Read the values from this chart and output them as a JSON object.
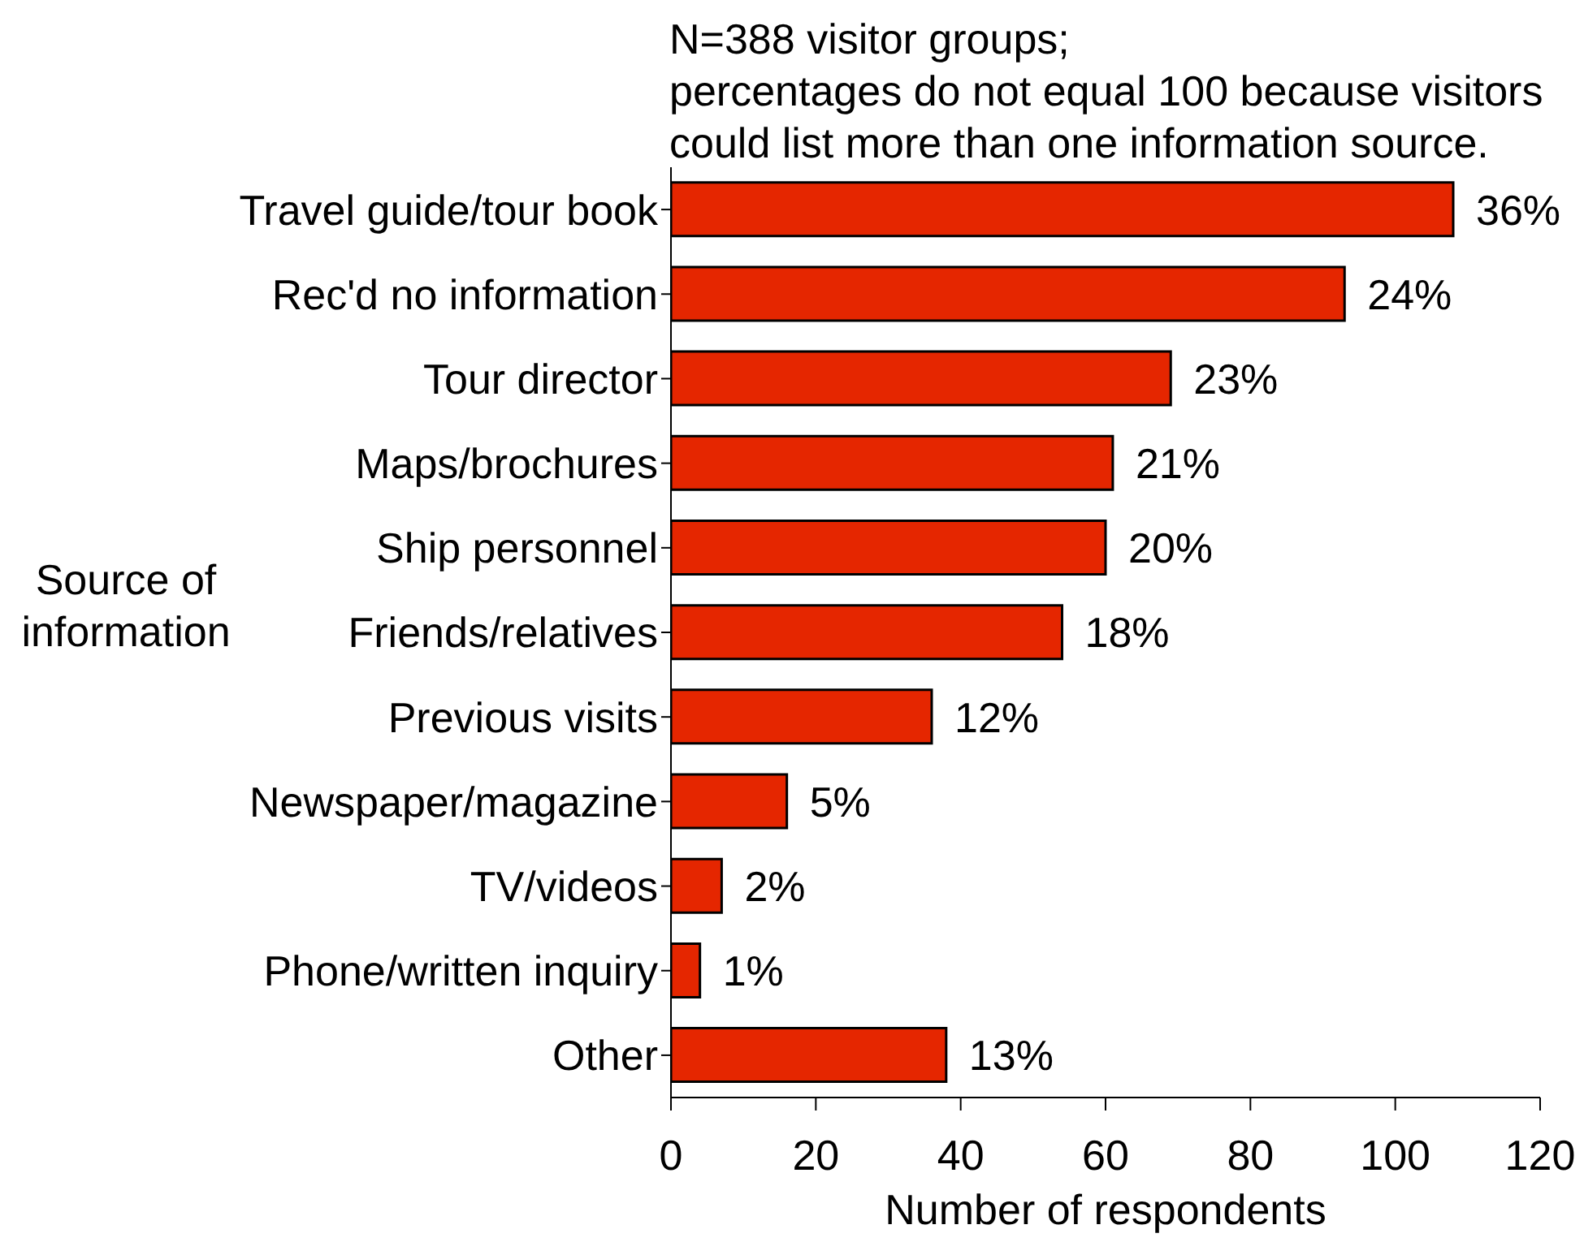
{
  "chart_data": {
    "type": "bar",
    "orientation": "horizontal",
    "annotations": [
      "N=388 visitor groups;",
      "percentages do not equal 100 because visitors could list more than one information source.",
      {
        "text": "36%",
        "x": 108,
        "y": "Travel guide/tour book"
      },
      {
        "text": "24%",
        "x": 93,
        "y": "Rec'd no information"
      },
      {
        "text": "23%",
        "x": 69,
        "y": "Tour director"
      },
      {
        "text": "21%",
        "x": 61,
        "y": "Maps/brochures"
      },
      {
        "text": "20%",
        "x": 60,
        "y": "Ship personnel"
      },
      {
        "text": "18%",
        "x": 54,
        "y": "Friends/relatives"
      },
      {
        "text": "12%",
        "x": 36,
        "y": "Previous visits"
      },
      {
        "text": "5%",
        "x": 16,
        "y": "Newspaper/magazine"
      },
      {
        "text": "2%",
        "x": 7,
        "y": "TV/videos"
      },
      {
        "text": "1%",
        "x": 4,
        "y": "Phone/written inquiry"
      },
      {
        "text": "13%",
        "x": 38,
        "y": "Other"
      }
    ],
    "xlabel": "Number of respondents",
    "ylabel": "Source of information",
    "categories": [
      "Travel guide/tour book",
      "Rec'd no information",
      "Tour director",
      "Maps/brochures",
      "Ship personnel",
      "Friends/relatives",
      "Previous visits",
      "Newspaper/magazine",
      "TV/videos",
      "Phone/written inquiry",
      "Other"
    ],
    "values": [
      108,
      93,
      69,
      61,
      60,
      54,
      36,
      16,
      7,
      4,
      38
    ],
    "color": "#e52600",
    "xlim": [
      0,
      120
    ],
    "xticks": [
      0,
      20,
      40,
      60,
      80,
      100,
      120
    ],
    "grid": false,
    "legend": false
  }
}
